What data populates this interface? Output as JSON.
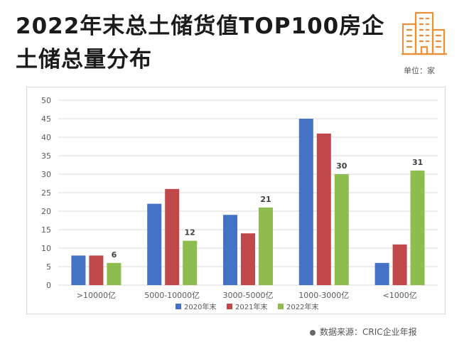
{
  "header": {
    "title_line1": "2022年末总土储货值TOP100房企",
    "title_line2": "土储总量分布",
    "unit": "单位：家"
  },
  "footer": {
    "source": "数据来源：CRIC企业年报"
  },
  "icons": {
    "header": "building-icon",
    "source": "dot-icon"
  },
  "colors": {
    "series": [
      "#4472c4",
      "#c0474a",
      "#8fbc4e"
    ],
    "axis_text": "#595959",
    "grid": "#d9d9d9"
  },
  "chart_data": {
    "type": "bar",
    "categories": [
      ">10000亿",
      "5000-10000亿",
      "3000-5000亿",
      "1000-3000亿",
      "<1000亿"
    ],
    "series": [
      {
        "name": "2020年末",
        "values": [
          8,
          22,
          19,
          45,
          6
        ]
      },
      {
        "name": "2021年末",
        "values": [
          8,
          26,
          14,
          41,
          11
        ]
      },
      {
        "name": "2022年末",
        "values": [
          6,
          12,
          21,
          30,
          31
        ],
        "labels": [
          "6",
          "12",
          "21",
          "30",
          "31"
        ]
      }
    ],
    "ylim": [
      0,
      50
    ],
    "yticks": [
      0,
      5,
      10,
      15,
      20,
      25,
      30,
      35,
      40,
      45,
      50
    ],
    "grid": true,
    "legend": "bottom"
  }
}
